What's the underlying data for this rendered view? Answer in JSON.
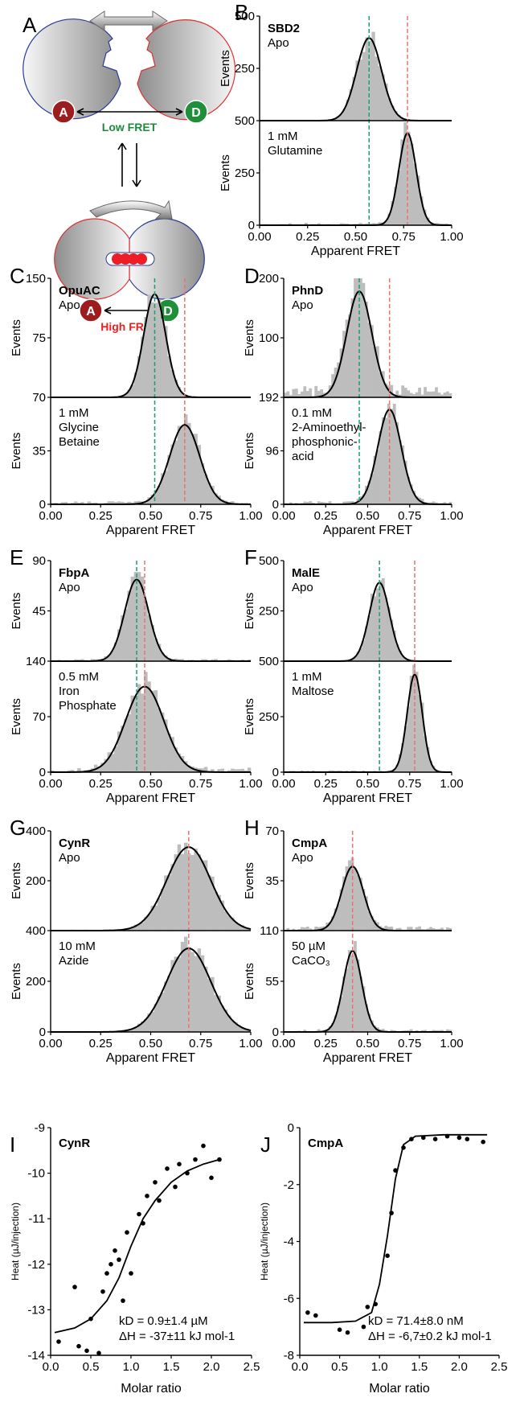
{
  "panel_a": {
    "letter": "A",
    "low_fret": "Low FRET",
    "high_fret": "High FRET",
    "acceptor": "A",
    "donor": "D",
    "colors": {
      "low": "#1e8a3c",
      "high": "#e8231f",
      "acceptor": "#9c1d1d",
      "donor": "#1f8f3a",
      "ligand": "#ee1c24"
    }
  },
  "chart_data": [
    {
      "id": "B",
      "type": "bar",
      "title": "SBD2",
      "xlabel": "Apparent FRET",
      "ylabel": "Events",
      "xlim": [
        0,
        1
      ],
      "xticks": [
        "0.00",
        "0.25",
        "0.50",
        "0.75",
        "1.00"
      ],
      "subplots": [
        {
          "condition": [
            "Apo"
          ],
          "ylim": [
            0,
            500
          ],
          "yticks": [
            250,
            500
          ],
          "gaussians": [
            {
              "mean": 0.57,
              "sd": 0.065,
              "amp": 395
            }
          ],
          "noise": 2
        },
        {
          "condition": [
            "1 mM",
            "Glutamine"
          ],
          "ylim": [
            0,
            500
          ],
          "yticks": [
            0,
            250,
            500
          ],
          "gaussians": [
            {
              "mean": 0.77,
              "sd": 0.045,
              "amp": 440
            }
          ],
          "noise": 12
        }
      ],
      "ref_lines": [
        {
          "x": 0.57,
          "color": "#1e9e6e"
        },
        {
          "x": 0.77,
          "color": "#f07070"
        }
      ]
    },
    {
      "id": "C",
      "type": "bar",
      "title": "OpuAC",
      "xlabel": "Apparent FRET",
      "ylabel": "Events",
      "xlim": [
        0,
        1
      ],
      "xticks": [
        "0.00",
        "0.25",
        "0.50",
        "0.75",
        "1.00"
      ],
      "subplots": [
        {
          "condition": [
            "Apo"
          ],
          "ylim": [
            0,
            150
          ],
          "yticks": [
            75,
            150
          ],
          "gaussians": [
            {
              "mean": 0.52,
              "sd": 0.055,
              "amp": 130
            }
          ],
          "noise": 1
        },
        {
          "condition": [
            "1 mM",
            "Glycine",
            "Betaine"
          ],
          "ylim": [
            0,
            70
          ],
          "yticks": [
            0,
            35,
            70
          ],
          "gaussians": [
            {
              "mean": 0.67,
              "sd": 0.075,
              "amp": 52
            }
          ],
          "noise": 2
        }
      ],
      "ref_lines": [
        {
          "x": 0.52,
          "color": "#1e9e6e"
        },
        {
          "x": 0.67,
          "color": "#f07070"
        }
      ]
    },
    {
      "id": "D",
      "type": "bar",
      "title": "PhnD",
      "xlabel": "Apparent FRET",
      "ylabel": "Events",
      "xlim": [
        0,
        1
      ],
      "xticks": [
        "0.00",
        "0.25",
        "0.50",
        "0.75",
        "1.00"
      ],
      "subplots": [
        {
          "condition": [
            "Apo"
          ],
          "ylim": [
            0,
            200
          ],
          "yticks": [
            100,
            200
          ],
          "gaussians": [
            {
              "mean": 0.45,
              "sd": 0.075,
              "amp": 178
            }
          ],
          "noise": 20
        },
        {
          "condition": [
            "0.1 mM",
            "2-Aminoethyl-",
            "phosphonic-",
            "acid"
          ],
          "ylim": [
            0,
            192
          ],
          "yticks": [
            0,
            96,
            192
          ],
          "gaussians": [
            {
              "mean": 0.63,
              "sd": 0.07,
              "amp": 170
            }
          ],
          "noise": 6
        }
      ],
      "ref_lines": [
        {
          "x": 0.45,
          "color": "#1e9e6e"
        },
        {
          "x": 0.63,
          "color": "#f07070"
        }
      ]
    },
    {
      "id": "E",
      "type": "bar",
      "title": "FbpA",
      "xlabel": "Apparent FRET",
      "ylabel": "Events",
      "xlim": [
        0,
        1
      ],
      "xticks": [
        "0.00",
        "0.25",
        "0.50",
        "0.75",
        "1.00"
      ],
      "subplots": [
        {
          "condition": [
            "Apo"
          ],
          "ylim": [
            0,
            90
          ],
          "yticks": [
            45,
            90
          ],
          "gaussians": [
            {
              "mean": 0.43,
              "sd": 0.06,
              "amp": 73
            }
          ],
          "noise": 2
        },
        {
          "condition": [
            "0.5 mM",
            "Iron",
            "Phosphate"
          ],
          "ylim": [
            0,
            140
          ],
          "yticks": [
            0,
            70,
            140
          ],
          "gaussians": [
            {
              "mean": 0.47,
              "sd": 0.095,
              "amp": 108
            }
          ],
          "noise": 6
        }
      ],
      "ref_lines": [
        {
          "x": 0.43,
          "color": "#1e9e6e"
        },
        {
          "x": 0.47,
          "color": "#f07070"
        }
      ]
    },
    {
      "id": "F",
      "type": "bar",
      "title": "MalE",
      "xlabel": "Apparent FRET",
      "ylabel": "Events",
      "xlim": [
        0,
        1
      ],
      "xticks": [
        "0.00",
        "0.25",
        "0.50",
        "0.75",
        "1.00"
      ],
      "subplots": [
        {
          "condition": [
            "Apo"
          ],
          "ylim": [
            0,
            500
          ],
          "yticks": [
            250,
            500
          ],
          "gaussians": [
            {
              "mean": 0.57,
              "sd": 0.06,
              "amp": 390
            }
          ],
          "noise": 3
        },
        {
          "condition": [
            "1 mM",
            "Maltose"
          ],
          "ylim": [
            0,
            500
          ],
          "yticks": [
            0,
            250,
            500
          ],
          "gaussians": [
            {
              "mean": 0.78,
              "sd": 0.045,
              "amp": 440
            }
          ],
          "noise": 8
        }
      ],
      "ref_lines": [
        {
          "x": 0.57,
          "color": "#1e9e6e"
        },
        {
          "x": 0.78,
          "color": "#f07070"
        }
      ]
    },
    {
      "id": "G",
      "type": "bar",
      "title": "CynR",
      "xlabel": "Apparent FRET",
      "ylabel": "Events",
      "xlim": [
        0,
        1
      ],
      "xticks": [
        "0.00",
        "0.25",
        "0.50",
        "0.75",
        "1.00"
      ],
      "subplots": [
        {
          "condition": [
            "Apo"
          ],
          "ylim": [
            0,
            400
          ],
          "yticks": [
            200,
            400
          ],
          "gaussians": [
            {
              "mean": 0.69,
              "sd": 0.11,
              "amp": 335
            }
          ],
          "noise": 4
        },
        {
          "condition": [
            "10 mM",
            "Azide"
          ],
          "ylim": [
            0,
            400
          ],
          "yticks": [
            0,
            200,
            400
          ],
          "gaussians": [
            {
              "mean": 0.69,
              "sd": 0.11,
              "amp": 330
            }
          ],
          "noise": 4
        }
      ],
      "ref_lines": [
        {
          "x": 0.69,
          "color": "#f07070"
        }
      ]
    },
    {
      "id": "H",
      "type": "bar",
      "title": "CmpA",
      "xlabel": "Apparent FRET",
      "ylabel": "Events",
      "xlim": [
        0,
        1
      ],
      "xticks": [
        "0.00",
        "0.25",
        "0.50",
        "0.75",
        "1.00"
      ],
      "subplots": [
        {
          "condition": [
            "Apo"
          ],
          "ylim": [
            0,
            70
          ],
          "yticks": [
            35,
            70
          ],
          "gaussians": [
            {
              "mean": 0.41,
              "sd": 0.065,
              "amp": 45
            }
          ],
          "noise": 3
        },
        {
          "condition": [
            "50 µM",
            "CaCO₃"
          ],
          "ylim": [
            0,
            110
          ],
          "yticks": [
            0,
            55,
            110
          ],
          "gaussians": [
            {
              "mean": 0.41,
              "sd": 0.055,
              "amp": 88
            }
          ],
          "noise": 3
        }
      ],
      "ref_lines": [
        {
          "x": 0.41,
          "color": "#f07070"
        }
      ]
    },
    {
      "id": "I",
      "type": "scatter",
      "title": "CynR",
      "xlabel": "Molar ratio",
      "ylabel": "Heat (µJ/injection)",
      "xlim": [
        0,
        2.5
      ],
      "ylim": [
        -14,
        -9
      ],
      "xticks": [
        "0.0",
        "0.5",
        "1.0",
        "1.5",
        "2.0",
        "2.5"
      ],
      "yticks": [
        "-9",
        "-10",
        "-11",
        "-12",
        "-13",
        "-14"
      ],
      "annotation": [
        "kD = 0.9±1.4 µM",
        "ΔH = -37±11 kJ mol-1"
      ],
      "points": [
        [
          0.1,
          -13.7
        ],
        [
          0.3,
          -12.5
        ],
        [
          0.35,
          -13.8
        ],
        [
          0.45,
          -13.9
        ],
        [
          0.5,
          -13.2
        ],
        [
          0.6,
          -13.95
        ],
        [
          0.65,
          -12.6
        ],
        [
          0.7,
          -12.2
        ],
        [
          0.75,
          -12.0
        ],
        [
          0.8,
          -11.7
        ],
        [
          0.85,
          -11.9
        ],
        [
          0.9,
          -12.8
        ],
        [
          0.95,
          -11.3
        ],
        [
          1.0,
          -12.2
        ],
        [
          1.1,
          -10.9
        ],
        [
          1.15,
          -11.1
        ],
        [
          1.2,
          -10.5
        ],
        [
          1.3,
          -10.2
        ],
        [
          1.35,
          -10.6
        ],
        [
          1.45,
          -9.9
        ],
        [
          1.55,
          -10.3
        ],
        [
          1.6,
          -9.8
        ],
        [
          1.7,
          -10.0
        ],
        [
          1.8,
          -9.7
        ],
        [
          1.9,
          -9.4
        ],
        [
          2.0,
          -10.1
        ],
        [
          2.1,
          -9.7
        ]
      ],
      "fit": [
        [
          0.05,
          -13.5
        ],
        [
          0.3,
          -13.4
        ],
        [
          0.5,
          -13.2
        ],
        [
          0.7,
          -12.8
        ],
        [
          0.85,
          -12.3
        ],
        [
          1.0,
          -11.6
        ],
        [
          1.15,
          -11.0
        ],
        [
          1.3,
          -10.6
        ],
        [
          1.5,
          -10.2
        ],
        [
          1.7,
          -9.95
        ],
        [
          1.9,
          -9.8
        ],
        [
          2.1,
          -9.7
        ]
      ]
    },
    {
      "id": "J",
      "type": "scatter",
      "title": "CmpA",
      "xlabel": "Molar ratio",
      "ylabel": "Heat (µJ/injection)",
      "xlim": [
        0,
        2.5
      ],
      "ylim": [
        -8,
        0
      ],
      "xticks": [
        "0.0",
        "0.5",
        "1.0",
        "1.5",
        "2.0",
        "2.5"
      ],
      "yticks": [
        "0",
        "-2",
        "-4",
        "-6",
        "-8"
      ],
      "annotation": [
        "kD = 71.4±8.0 nM",
        "ΔH = -6,7±0.2 kJ mol-1"
      ],
      "points": [
        [
          0.1,
          -6.5
        ],
        [
          0.2,
          -6.6
        ],
        [
          0.5,
          -7.1
        ],
        [
          0.6,
          -7.2
        ],
        [
          0.8,
          -7.0
        ],
        [
          0.85,
          -6.3
        ],
        [
          0.95,
          -6.2
        ],
        [
          1.1,
          -4.5
        ],
        [
          1.15,
          -3.0
        ],
        [
          1.2,
          -1.5
        ],
        [
          1.3,
          -0.7
        ],
        [
          1.4,
          -0.4
        ],
        [
          1.55,
          -0.35
        ],
        [
          1.7,
          -0.4
        ],
        [
          1.85,
          -0.3
        ],
        [
          2.0,
          -0.35
        ],
        [
          2.1,
          -0.4
        ],
        [
          2.3,
          -0.5
        ]
      ],
      "fit": [
        [
          0.05,
          -6.85
        ],
        [
          0.4,
          -6.85
        ],
        [
          0.7,
          -6.8
        ],
        [
          0.9,
          -6.5
        ],
        [
          1.0,
          -5.5
        ],
        [
          1.1,
          -3.8
        ],
        [
          1.2,
          -1.8
        ],
        [
          1.3,
          -0.6
        ],
        [
          1.45,
          -0.3
        ],
        [
          1.8,
          -0.25
        ],
        [
          2.35,
          -0.25
        ]
      ]
    }
  ]
}
